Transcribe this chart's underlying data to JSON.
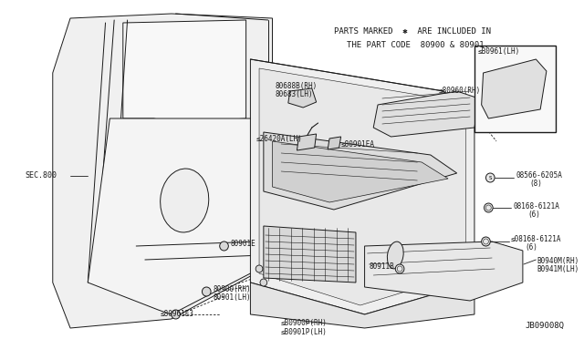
{
  "bg_color": "#ffffff",
  "line_color": "#1a1a1a",
  "light_fill": "#f0f0f0",
  "mid_fill": "#e0e0e0",
  "dark_fill": "#cccccc",
  "note_line1": "PARTS MARKED  ✱  ARE INCLUDED IN",
  "note_line2": "    THE PART CODE  80900 & 80901.",
  "diagram_code": "JB09008Q",
  "sec_label": "SEC.800"
}
